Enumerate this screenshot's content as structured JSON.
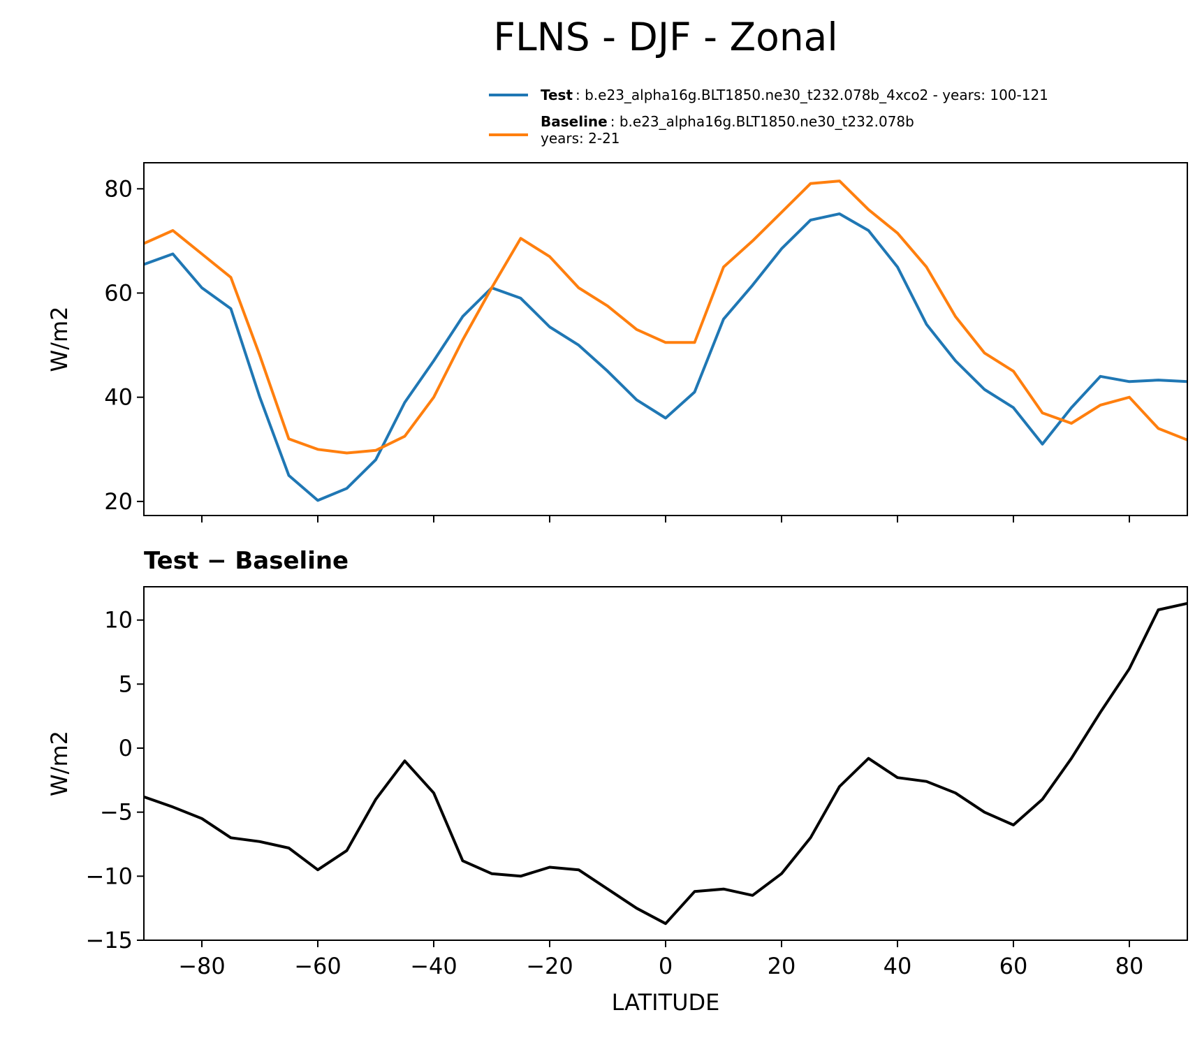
{
  "chart_data": [
    {
      "type": "line",
      "title": "FLNS - DJF - Zonal",
      "ylabel": "W/m2",
      "x": [
        -90,
        -85,
        -80,
        -75,
        -70,
        -65,
        -60,
        -55,
        -50,
        -45,
        -40,
        -35,
        -30,
        -25,
        -20,
        -15,
        -10,
        -5,
        0,
        5,
        10,
        15,
        20,
        25,
        30,
        35,
        40,
        45,
        50,
        55,
        60,
        65,
        70,
        75,
        80,
        85,
        90
      ],
      "series": [
        {
          "name": "Test",
          "description": ": b.e23_alpha16g.BLT1850.ne30_t232.078b_4xco2 - years: 100-121",
          "color": "#1f77b4",
          "values": [
            65.5,
            67.5,
            61,
            57,
            40,
            25,
            20.2,
            22.5,
            28,
            39,
            47,
            55.5,
            61,
            59,
            53.5,
            50,
            45,
            39.5,
            36,
            41,
            55,
            61.5,
            68.5,
            74,
            75.2,
            72,
            65,
            54,
            47,
            41.5,
            38,
            31,
            38,
            44,
            43,
            43.3,
            43
          ]
        },
        {
          "name": "Baseline",
          "description": ": b.e23_alpha16g.BLT1850.ne30_t232.078b",
          "description2": "years: 2-21",
          "color": "#ff7f0e",
          "values": [
            69.5,
            72,
            67.5,
            63,
            48,
            32,
            30,
            29.3,
            29.8,
            32.5,
            40,
            51,
            61,
            70.5,
            67,
            61,
            57.5,
            53,
            50.5,
            50.5,
            65,
            70,
            75.5,
            81,
            81.5,
            76,
            71.5,
            65,
            55.5,
            48.5,
            45,
            37,
            35,
            38.5,
            40,
            34,
            31.8
          ]
        }
      ],
      "xlim": [
        -90,
        90
      ],
      "xticks": [
        -80,
        -60,
        -40,
        -20,
        0,
        20,
        40,
        60,
        80
      ],
      "show_xtick_labels": false,
      "ylim": [
        17.3,
        85
      ],
      "yticks": [
        20,
        40,
        60,
        80
      ]
    },
    {
      "type": "line",
      "title": "Test − Baseline",
      "ylabel": "W/m2",
      "xlabel": "LATITUDE",
      "x": [
        -90,
        -85,
        -80,
        -75,
        -70,
        -65,
        -60,
        -55,
        -50,
        -45,
        -40,
        -35,
        -30,
        -25,
        -20,
        -15,
        -10,
        -5,
        0,
        5,
        10,
        15,
        20,
        25,
        30,
        35,
        40,
        45,
        50,
        55,
        60,
        65,
        70,
        75,
        80,
        85,
        90
      ],
      "series": [
        {
          "color": "#000000",
          "values": [
            -3.8,
            -4.6,
            -5.5,
            -7,
            -7.3,
            -7.8,
            -9.5,
            -8,
            -4,
            -1,
            -3.5,
            -8.8,
            -9.8,
            -10,
            -9.3,
            -9.5,
            -11,
            -12.5,
            -13.7,
            -11.2,
            -11,
            -11.5,
            -9.8,
            -7,
            -3,
            -0.8,
            -2.3,
            -2.6,
            -3.5,
            -5,
            -6,
            -4,
            -0.8,
            2.8,
            6.2,
            10.8,
            11.3
          ]
        }
      ],
      "xlim": [
        -90,
        90
      ],
      "xticks": [
        {
          "value": -80,
          "label": "−80"
        },
        {
          "value": -60,
          "label": "−60"
        },
        {
          "value": -40,
          "label": "−40"
        },
        {
          "value": -20,
          "label": "−20"
        },
        0,
        20,
        40,
        60,
        80
      ],
      "show_xtick_labels": true,
      "ylim": [
        -15,
        12.6
      ],
      "yticks": [
        {
          "value": -15,
          "label": "−15"
        },
        {
          "value": -10,
          "label": "−10"
        },
        {
          "value": -5,
          "label": "−5"
        },
        0,
        5,
        10
      ]
    }
  ]
}
